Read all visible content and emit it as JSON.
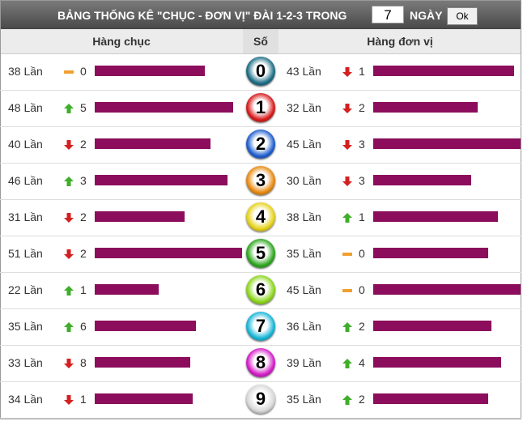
{
  "header": {
    "title": "BẢNG THỐNG KÊ \"CHỤC - ĐƠN VỊ\" ĐÀI 1-2-3 TRONG",
    "days": "7",
    "days_unit": "NGÀY",
    "button": "Ok"
  },
  "columns": [
    "Hàng chục",
    "Số",
    "Hàng đơn vị"
  ],
  "bar_color": "#8b0d5c",
  "rows": [
    {
      "digit": "0",
      "color": "#1d6f86",
      "left": {
        "count": {
          "value": 38,
          "label": "38 Lần"
        },
        "trend": "flat",
        "delta": "0"
      },
      "right": {
        "count": {
          "value": 43,
          "label": "43 Lần"
        },
        "trend": "down",
        "delta": "1"
      }
    },
    {
      "digit": "1",
      "color": "#d81c1c",
      "left": {
        "count": {
          "value": 48,
          "label": "48 Lần"
        },
        "trend": "up",
        "delta": "5"
      },
      "right": {
        "count": {
          "value": 32,
          "label": "32 Lần"
        },
        "trend": "down",
        "delta": "2"
      }
    },
    {
      "digit": "2",
      "color": "#1f5fcf",
      "left": {
        "count": {
          "value": 40,
          "label": "40 Lần"
        },
        "trend": "down",
        "delta": "2"
      },
      "right": {
        "count": {
          "value": 45,
          "label": "45 Lần"
        },
        "trend": "down",
        "delta": "3"
      }
    },
    {
      "digit": "3",
      "color": "#e88a10",
      "left": {
        "count": {
          "value": 46,
          "label": "46 Lần"
        },
        "trend": "up",
        "delta": "3"
      },
      "right": {
        "count": {
          "value": 30,
          "label": "30 Lần"
        },
        "trend": "down",
        "delta": "3"
      }
    },
    {
      "digit": "4",
      "color": "#e6d21a",
      "left": {
        "count": {
          "value": 31,
          "label": "31 Lần"
        },
        "trend": "down",
        "delta": "2"
      },
      "right": {
        "count": {
          "value": 38,
          "label": "38 Lần"
        },
        "trend": "up",
        "delta": "1"
      }
    },
    {
      "digit": "5",
      "color": "#2ea81f",
      "left": {
        "count": {
          "value": 51,
          "label": "51 Lần"
        },
        "trend": "down",
        "delta": "2"
      },
      "right": {
        "count": {
          "value": 35,
          "label": "35 Lần"
        },
        "trend": "flat",
        "delta": "0"
      }
    },
    {
      "digit": "6",
      "color": "#8cd61c",
      "left": {
        "count": {
          "value": 22,
          "label": "22 Lần"
        },
        "trend": "up",
        "delta": "1"
      },
      "right": {
        "count": {
          "value": 45,
          "label": "45 Lần"
        },
        "trend": "flat",
        "delta": "0"
      }
    },
    {
      "digit": "7",
      "color": "#18b6d8",
      "left": {
        "count": {
          "value": 35,
          "label": "35 Lần"
        },
        "trend": "up",
        "delta": "6"
      },
      "right": {
        "count": {
          "value": 36,
          "label": "36 Lần"
        },
        "trend": "up",
        "delta": "2"
      }
    },
    {
      "digit": "8",
      "color": "#d41ec8",
      "left": {
        "count": {
          "value": 33,
          "label": "33 Lần"
        },
        "trend": "down",
        "delta": "8"
      },
      "right": {
        "count": {
          "value": 39,
          "label": "39 Lần"
        },
        "trend": "up",
        "delta": "4"
      }
    },
    {
      "digit": "9",
      "color": "#d8d8d8",
      "left": {
        "count": {
          "value": 34,
          "label": "34 Lần"
        },
        "trend": "down",
        "delta": "1"
      },
      "right": {
        "count": {
          "value": 35,
          "label": "35 Lần"
        },
        "trend": "up",
        "delta": "2"
      }
    }
  ]
}
